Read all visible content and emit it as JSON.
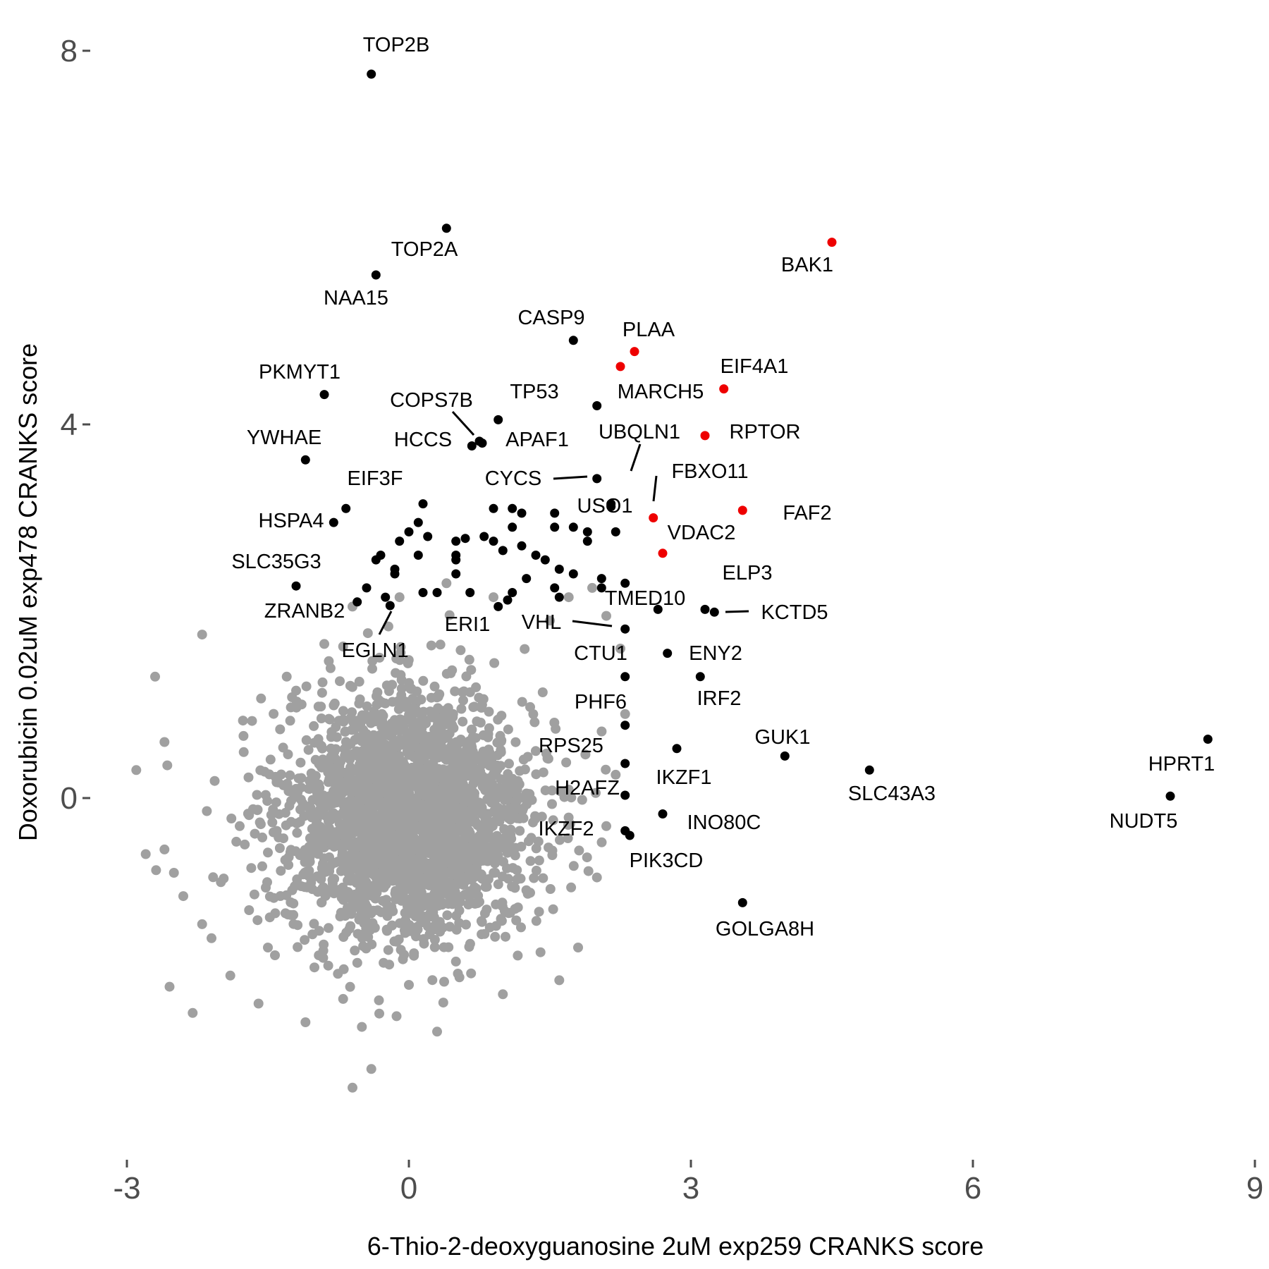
{
  "chart_data": {
    "type": "scatter",
    "xlabel": "6-Thio-2-deoxyguanosine 2uM exp259 CRANKS score",
    "ylabel": "Doxorubicin 0.02uM exp478 CRANKS score",
    "xlim": [
      -3,
      9
    ],
    "ylim": [
      -3.9,
      8.2
    ],
    "x_ticks": [
      -3,
      0,
      3,
      6,
      9
    ],
    "x_tick_labels": [
      "-3",
      "0",
      "3",
      "6",
      "9"
    ],
    "y_ticks": [
      0,
      4,
      8
    ],
    "y_tick_labels": [
      "0",
      "4",
      "8"
    ],
    "grid": false,
    "legend": "none",
    "colors": {
      "background": "#ffffff",
      "all_genes": "#a0a0a0",
      "hit": "#000000",
      "highlight": "#ee0000",
      "tick": "#4d4d4d",
      "title": "#000000"
    },
    "background_cloud": {
      "note_free": true,
      "count": 2600,
      "center": [
        0.0,
        -0.2
      ],
      "sd": [
        0.65,
        0.65
      ]
    },
    "background_outliers": [
      [
        -2.8,
        -0.6
      ],
      [
        -2.6,
        -0.55
      ],
      [
        -2.4,
        -1.05
      ],
      [
        -2.3,
        -2.3
      ],
      [
        -2.5,
        -0.8
      ],
      [
        -2.1,
        -1.5
      ],
      [
        -2.0,
        -0.9
      ],
      [
        -1.8,
        -0.3
      ],
      [
        -1.6,
        -2.2
      ],
      [
        -1.5,
        -1.6
      ],
      [
        -1.3,
        1.3
      ],
      [
        -1.2,
        1.15
      ],
      [
        -1.0,
        -0.45
      ],
      [
        -0.9,
        1.65
      ],
      [
        -0.7,
        -2.15
      ],
      [
        -0.6,
        -3.1
      ],
      [
        -0.5,
        -2.45
      ],
      [
        -2.57,
        0.35
      ],
      [
        -2.6,
        0.6
      ],
      [
        -2.7,
        1.3
      ],
      [
        -2.2,
        1.75
      ],
      [
        -2.9,
        0.3
      ],
      [
        -1.9,
        -1.9
      ],
      [
        -1.1,
        -2.4
      ],
      [
        -0.4,
        -2.9
      ],
      [
        0.0,
        -2.0
      ],
      [
        0.3,
        -2.5
      ],
      [
        0.5,
        -1.75
      ],
      [
        1.0,
        -2.1
      ],
      [
        1.6,
        -1.95
      ],
      [
        1.8,
        -1.6
      ],
      [
        2.0,
        -0.85
      ],
      [
        2.1,
        -0.3
      ],
      [
        2.2,
        0.25
      ],
      [
        2.3,
        0.9
      ],
      [
        2.25,
        1.6
      ],
      [
        2.1,
        1.95
      ],
      [
        1.95,
        2.25
      ],
      [
        1.7,
        2.15
      ],
      [
        1.5,
        1.9
      ],
      [
        -1.7,
        -1.2
      ],
      [
        -2.2,
        -1.35
      ],
      [
        0.9,
        2.15
      ],
      [
        0.4,
        2.3
      ],
      [
        -0.1,
        2.15
      ],
      [
        -0.6,
        2.05
      ]
    ],
    "labeled_points": [
      {
        "name": "TOP2B",
        "x": -0.4,
        "y": 7.75,
        "color": "black"
      },
      {
        "name": "TOP2A",
        "x": 0.4,
        "y": 6.1,
        "color": "black"
      },
      {
        "name": "NAA15",
        "x": -0.35,
        "y": 5.6,
        "color": "black"
      },
      {
        "name": "BAK1",
        "x": 4.5,
        "y": 5.95,
        "color": "red"
      },
      {
        "name": "CASP9",
        "x": 1.75,
        "y": 4.9,
        "color": "black"
      },
      {
        "name": "PLAA",
        "x": 2.4,
        "y": 4.78,
        "color": "red"
      },
      {
        "name": "MARCH5",
        "x": 2.25,
        "y": 4.62,
        "color": "red"
      },
      {
        "name": "EIF4A1",
        "x": 3.35,
        "y": 4.38,
        "color": "red"
      },
      {
        "name": "PKMYT1",
        "x": -0.9,
        "y": 4.32,
        "color": "black"
      },
      {
        "name": "TP53",
        "x": 0.95,
        "y": 4.05,
        "color": "black"
      },
      {
        "name": "COPS7B",
        "x": 0.78,
        "y": 3.8,
        "color": "black"
      },
      {
        "name": "UBQLN1",
        "x": 2.0,
        "y": 4.2,
        "color": "black"
      },
      {
        "name": "HCCS",
        "x": 0.67,
        "y": 3.77,
        "color": "black"
      },
      {
        "name": "APAF1",
        "x": 0.75,
        "y": 3.82,
        "color": "black"
      },
      {
        "name": "RPTOR",
        "x": 3.15,
        "y": 3.88,
        "color": "red"
      },
      {
        "name": "YWHAE",
        "x": -1.1,
        "y": 3.62,
        "color": "black"
      },
      {
        "name": "CYCS",
        "x": 2.0,
        "y": 3.42,
        "color": "black"
      },
      {
        "name": "EIF3F",
        "x": -0.67,
        "y": 3.1,
        "color": "black"
      },
      {
        "name": "FBXO11",
        "x": 2.6,
        "y": 3.0,
        "color": "red"
      },
      {
        "name": "USO1",
        "x": 2.15,
        "y": 3.12,
        "color": "black"
      },
      {
        "name": "FAF2",
        "x": 3.55,
        "y": 3.08,
        "color": "red"
      },
      {
        "name": "HSPA4",
        "x": -0.8,
        "y": 2.95,
        "color": "black"
      },
      {
        "name": "VDAC2",
        "x": 2.7,
        "y": 2.62,
        "color": "red"
      },
      {
        "name": "SLC35G3",
        "x": -1.2,
        "y": 2.27,
        "color": "black"
      },
      {
        "name": "ELP3",
        "x": 3.15,
        "y": 2.02,
        "color": "black"
      },
      {
        "name": "TMED10",
        "x": 2.65,
        "y": 2.02,
        "color": "black"
      },
      {
        "name": "KCTD5",
        "x": 3.25,
        "y": 1.99,
        "color": "black"
      },
      {
        "name": "ZRANB2",
        "x": -0.55,
        "y": 2.1,
        "color": "black"
      },
      {
        "name": "ERI1",
        "x": 0.3,
        "y": 2.2,
        "color": "black"
      },
      {
        "name": "VHL",
        "x": 2.3,
        "y": 1.81,
        "color": "black"
      },
      {
        "name": "EGLN1",
        "x": -0.2,
        "y": 2.06,
        "color": "black"
      },
      {
        "name": "CTU1",
        "x": 2.3,
        "y": 1.3,
        "color": "black"
      },
      {
        "name": "ENY2",
        "x": 2.75,
        "y": 1.55,
        "color": "black"
      },
      {
        "name": "IRF2",
        "x": 3.1,
        "y": 1.3,
        "color": "black"
      },
      {
        "name": "PHF6",
        "x": 2.3,
        "y": 0.78,
        "color": "black"
      },
      {
        "name": "GUK1",
        "x": 4.0,
        "y": 0.45,
        "color": "black"
      },
      {
        "name": "RPS25",
        "x": 2.3,
        "y": 0.37,
        "color": "black"
      },
      {
        "name": "IKZF1",
        "x": 2.85,
        "y": 0.53,
        "color": "black"
      },
      {
        "name": "SLC43A3",
        "x": 4.9,
        "y": 0.3,
        "color": "black"
      },
      {
        "name": "HPRT1",
        "x": 8.5,
        "y": 0.63,
        "color": "black"
      },
      {
        "name": "NUDT5",
        "x": 8.1,
        "y": 0.02,
        "color": "black"
      },
      {
        "name": "H2AFZ",
        "x": 2.3,
        "y": 0.03,
        "color": "black"
      },
      {
        "name": "INO80C",
        "x": 2.7,
        "y": -0.17,
        "color": "black"
      },
      {
        "name": "IKZF2",
        "x": 2.3,
        "y": -0.35,
        "color": "black"
      },
      {
        "name": "PIK3CD",
        "x": 2.35,
        "y": -0.4,
        "color": "black"
      },
      {
        "name": "GOLGA8H",
        "x": 3.55,
        "y": -1.12,
        "color": "black"
      }
    ],
    "other_hits": [
      [
        0.15,
        3.15
      ],
      [
        0.1,
        2.95
      ],
      [
        0.2,
        2.8
      ],
      [
        0.0,
        2.85
      ],
      [
        -0.1,
        2.75
      ],
      [
        0.1,
        2.6
      ],
      [
        -0.3,
        2.6
      ],
      [
        -0.35,
        2.55
      ],
      [
        -0.15,
        2.45
      ],
      [
        -0.15,
        2.4
      ],
      [
        -0.45,
        2.25
      ],
      [
        -0.25,
        2.15
      ],
      [
        0.15,
        2.2
      ],
      [
        0.5,
        2.75
      ],
      [
        0.5,
        2.6
      ],
      [
        0.6,
        2.78
      ],
      [
        0.5,
        2.55
      ],
      [
        0.8,
        2.8
      ],
      [
        0.9,
        2.75
      ],
      [
        1.0,
        2.65
      ],
      [
        1.1,
        2.9
      ],
      [
        1.2,
        2.7
      ],
      [
        0.9,
        3.1
      ],
      [
        1.1,
        3.1
      ],
      [
        1.2,
        3.05
      ],
      [
        1.55,
        3.05
      ],
      [
        1.55,
        2.9
      ],
      [
        1.35,
        2.6
      ],
      [
        1.45,
        2.55
      ],
      [
        1.6,
        2.45
      ],
      [
        1.75,
        2.9
      ],
      [
        1.9,
        2.85
      ],
      [
        1.9,
        2.75
      ],
      [
        2.15,
        3.15
      ],
      [
        2.2,
        2.85
      ],
      [
        1.75,
        2.4
      ],
      [
        2.05,
        2.35
      ],
      [
        2.05,
        2.25
      ],
      [
        2.3,
        2.3
      ],
      [
        1.25,
        2.35
      ],
      [
        1.55,
        2.25
      ],
      [
        1.6,
        2.15
      ],
      [
        1.1,
        2.2
      ],
      [
        0.65,
        2.2
      ],
      [
        1.05,
        2.12
      ],
      [
        0.95,
        2.05
      ],
      [
        0.5,
        2.4
      ]
    ]
  },
  "labels": {
    "TOP2B": "TOP2B",
    "TOP2A": "TOP2A",
    "NAA15": "NAA15",
    "BAK1": "BAK1",
    "CASP9": "CASP9",
    "PLAA": "PLAA",
    "MARCH5": "MARCH5",
    "EIF4A1": "EIF4A1",
    "PKMYT1": "PKMYT1",
    "TP53": "TP53",
    "COPS7B": "COPS7B",
    "UBQLN1": "UBQLN1",
    "HCCS": "HCCS",
    "APAF1": "APAF1",
    "RPTOR": "RPTOR",
    "YWHAE": "YWHAE",
    "CYCS": "CYCS",
    "EIF3F": "EIF3F",
    "FBXO11": "FBXO11",
    "USO1": "USO1",
    "FAF2": "FAF2",
    "HSPA4": "HSPA4",
    "VDAC2": "VDAC2",
    "SLC35G3": "SLC35G3",
    "ELP3": "ELP3",
    "TMED10": "TMED10",
    "KCTD5": "KCTD5",
    "ZRANB2": "ZRANB2",
    "ERI1": "ERI1",
    "VHL": "VHL",
    "EGLN1": "EGLN1",
    "CTU1": "CTU1",
    "ENY2": "ENY2",
    "IRF2": "IRF2",
    "PHF6": "PHF6",
    "GUK1": "GUK1",
    "RPS25": "RPS25",
    "IKZF1": "IKZF1",
    "SLC43A3": "SLC43A3",
    "HPRT1": "HPRT1",
    "NUDT5": "NUDT5",
    "H2AFZ": "H2AFZ",
    "INO80C": "INO80C",
    "IKZF2": "IKZF2",
    "PIK3CD": "PIK3CD",
    "GOLGA8H": "GOLGA8H"
  }
}
